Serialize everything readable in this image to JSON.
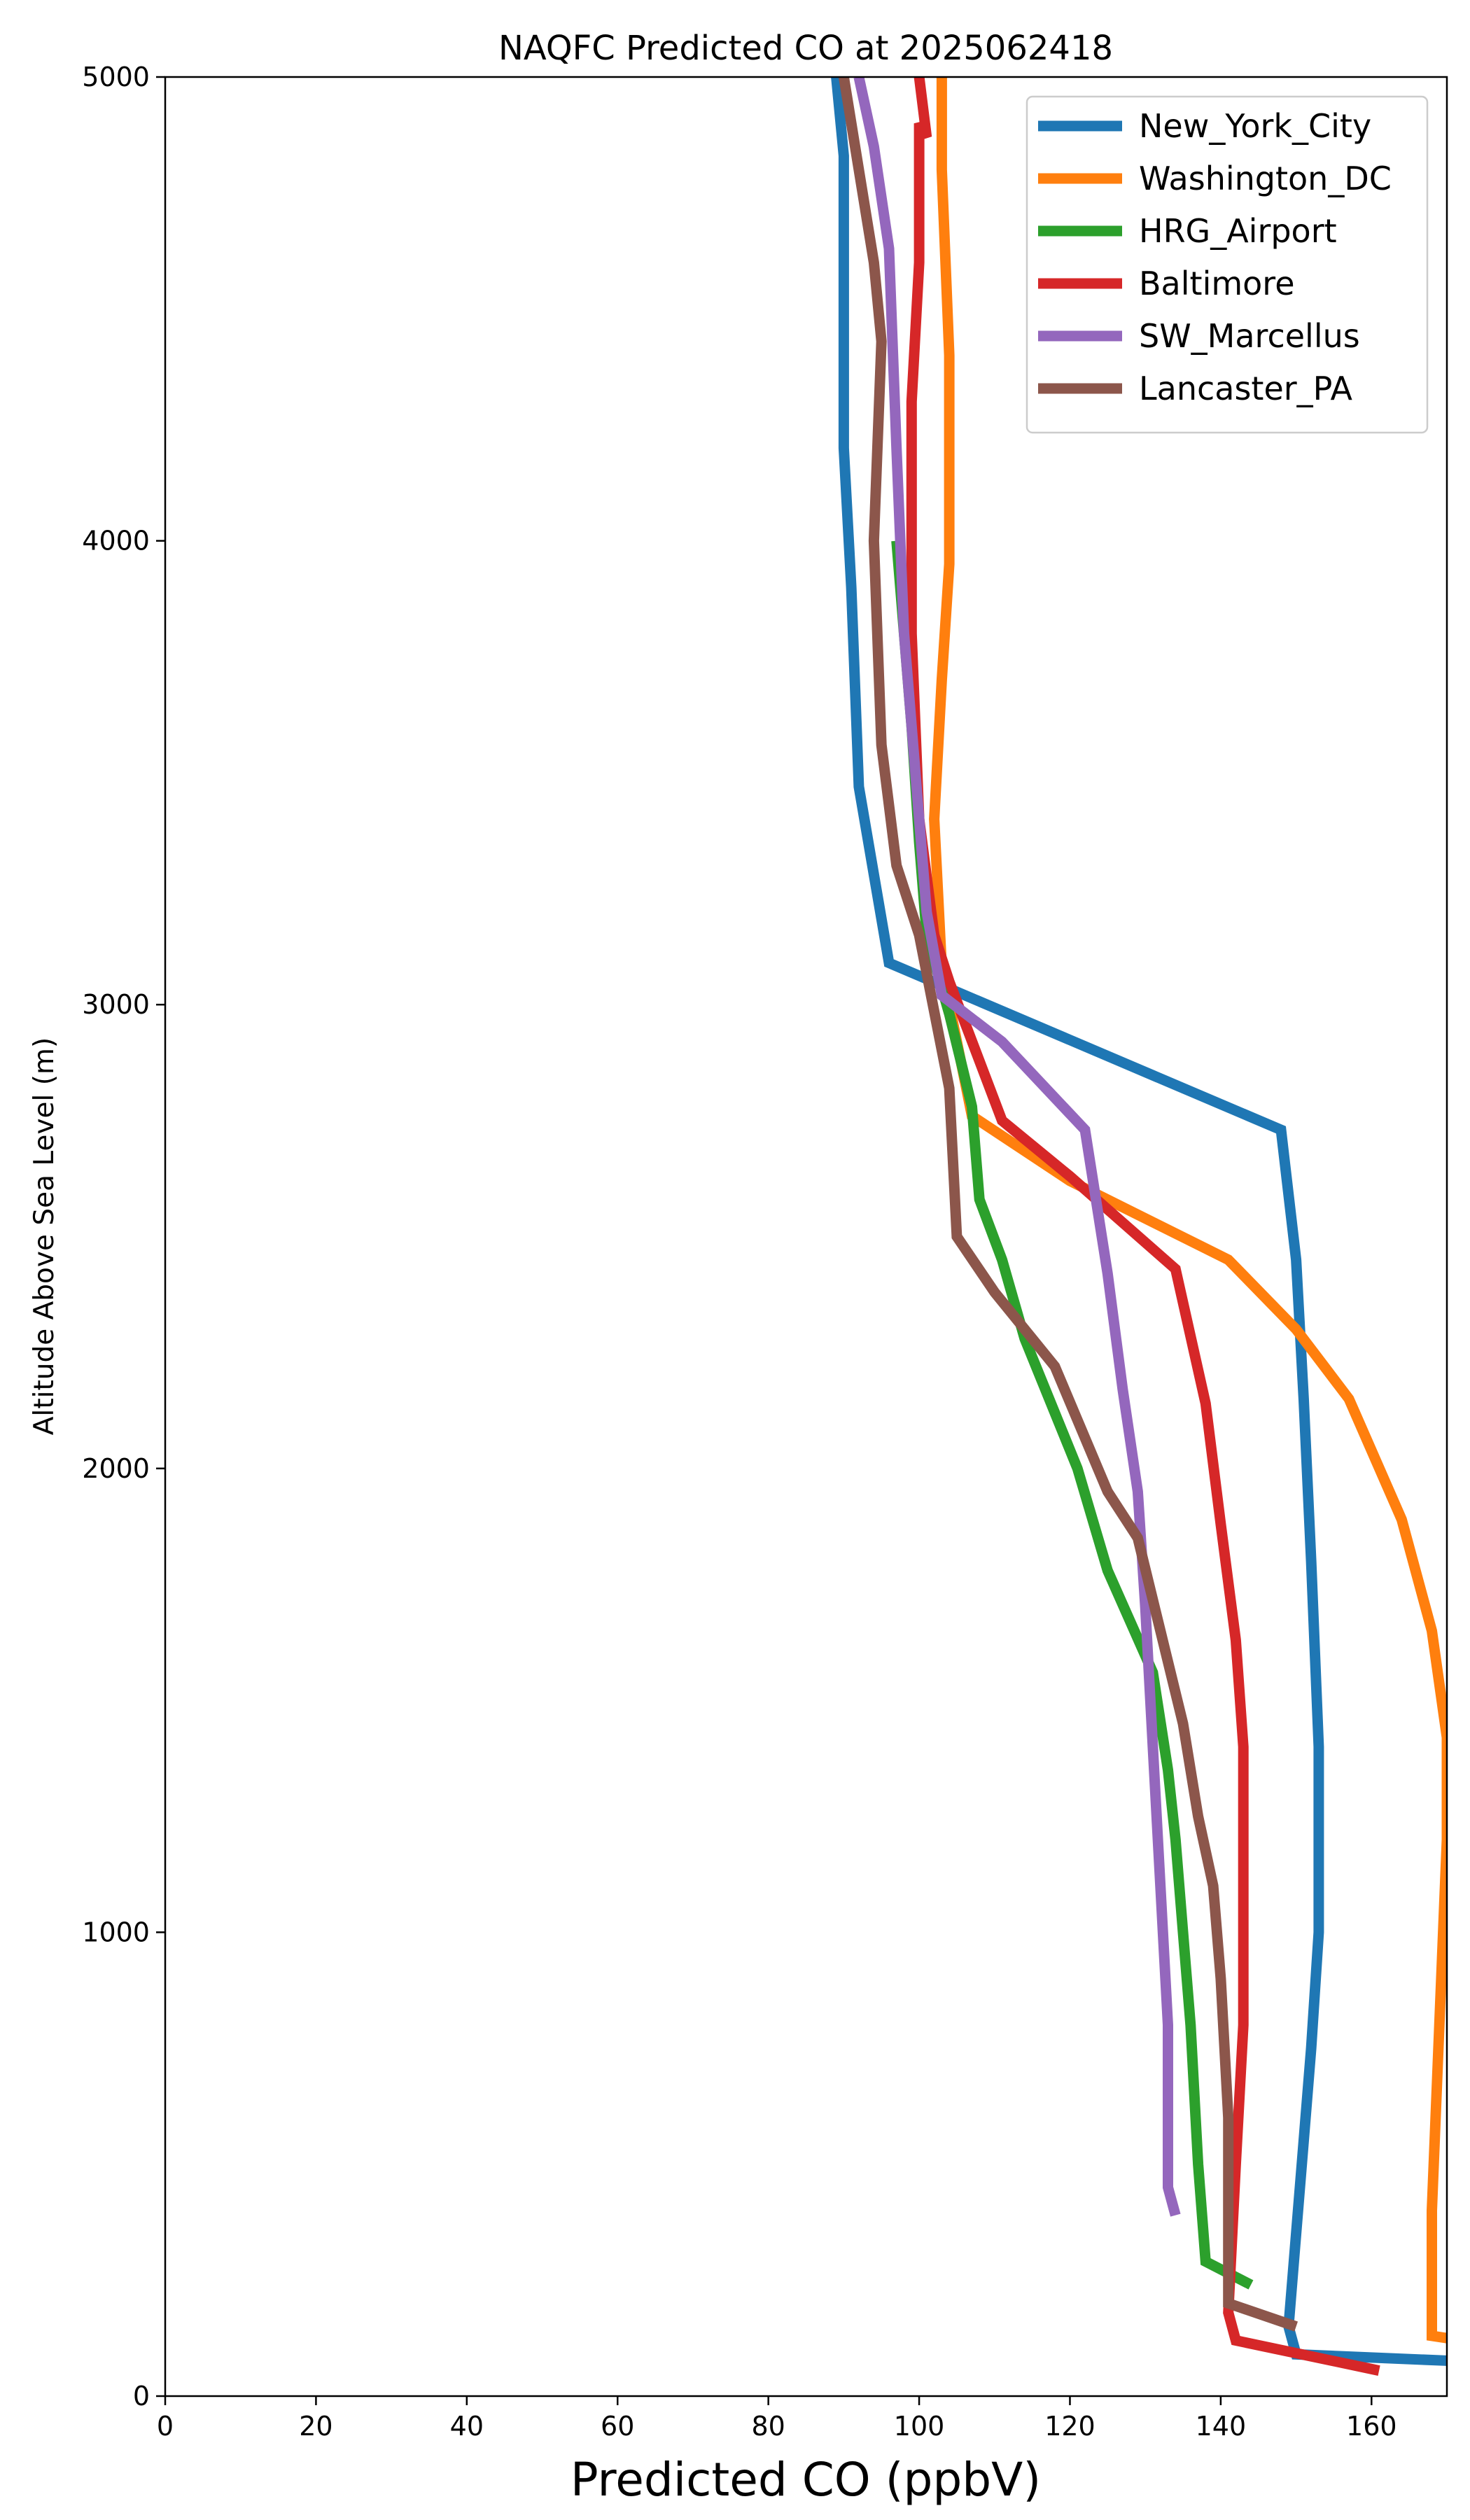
{
  "chart_data": {
    "type": "line",
    "title": "NAQFC Predicted CO at 2025062418",
    "xlabel": "Predicted CO (ppbV)",
    "ylabel": "Altitude Above Sea Level (m)",
    "xlim": [
      0,
      170
    ],
    "ylim": [
      0,
      5000
    ],
    "xticks": [
      "0",
      "20",
      "40",
      "60",
      "80",
      "100",
      "120",
      "140",
      "160"
    ],
    "yticks": [
      "0",
      "1000",
      "2000",
      "3000",
      "4000",
      "5000"
    ],
    "grid": false,
    "legend_position": "top-right",
    "series": [
      {
        "name": "New_York_City",
        "color": "#1f77b4",
        "x": [
          172,
          150,
          149,
          150,
          151,
          152,
          153,
          153,
          153,
          152,
          151,
          150,
          148,
          96,
          92,
          91,
          90,
          90,
          90,
          89
        ],
        "y": [
          75,
          90,
          150,
          350,
          550,
          750,
          1000,
          1200,
          1400,
          1800,
          2150,
          2450,
          2730,
          3090,
          3470,
          3900,
          4200,
          4500,
          4830,
          5000
        ]
      },
      {
        "name": "Washington_DC",
        "color": "#ff7f0e",
        "x": [
          172,
          168,
          168,
          169,
          170,
          170,
          168,
          164,
          157,
          150,
          141,
          120,
          107,
          103,
          102,
          103,
          104,
          104,
          103,
          103
        ],
        "y": [
          120,
          130,
          400,
          800,
          1200,
          1420,
          1650,
          1890,
          2150,
          2300,
          2450,
          2620,
          2760,
          3080,
          3400,
          3700,
          3950,
          4400,
          4800,
          5000
        ]
      },
      {
        "name": "HRG_Airport",
        "color": "#2ca02c",
        "x": [
          144,
          138,
          137,
          136,
          135,
          134,
          133,
          131,
          125,
          121,
          114,
          111,
          108,
          107,
          104,
          101,
          100,
          99,
          98,
          97
        ],
        "y": [
          240,
          290,
          500,
          800,
          1000,
          1200,
          1350,
          1560,
          1780,
          2000,
          2280,
          2450,
          2580,
          2780,
          2980,
          3150,
          3350,
          3600,
          3800,
          4000
        ]
      },
      {
        "name": "Baltimore",
        "color": "#d62728",
        "x": [
          161,
          142,
          141,
          142,
          143,
          143,
          143,
          142,
          140,
          138,
          134,
          120,
          111,
          104,
          102,
          100,
          99,
          99,
          100,
          100,
          101,
          100
        ],
        "y": [
          55,
          120,
          180,
          500,
          800,
          1100,
          1400,
          1630,
          1880,
          2140,
          2430,
          2630,
          2750,
          3050,
          3150,
          3400,
          3800,
          4300,
          4600,
          4900,
          4870,
          5000
        ]
      },
      {
        "name": "SW_Marcellus",
        "color": "#9467bd",
        "x": [
          134,
          133,
          133,
          132,
          131,
          130,
          129,
          127,
          125,
          122,
          111,
          103,
          101,
          100,
          99,
          98,
          97,
          96,
          94,
          92
        ],
        "y": [
          390,
          450,
          800,
          1100,
          1400,
          1700,
          1950,
          2170,
          2420,
          2730,
          2920,
          3020,
          3200,
          3400,
          3600,
          3800,
          4200,
          4630,
          4850,
          5000
        ]
      },
      {
        "name": "Lancaster_PA",
        "color": "#8c564b",
        "x": [
          150,
          141,
          141,
          140,
          139,
          137,
          135,
          132,
          129,
          125,
          118,
          110,
          105,
          104,
          100,
          97,
          95,
          94,
          95,
          94,
          90
        ],
        "y": [
          150,
          200,
          600,
          900,
          1100,
          1250,
          1450,
          1650,
          1850,
          1950,
          2220,
          2380,
          2500,
          2820,
          3150,
          3300,
          3560,
          4000,
          4430,
          4600,
          5000
        ]
      }
    ]
  }
}
